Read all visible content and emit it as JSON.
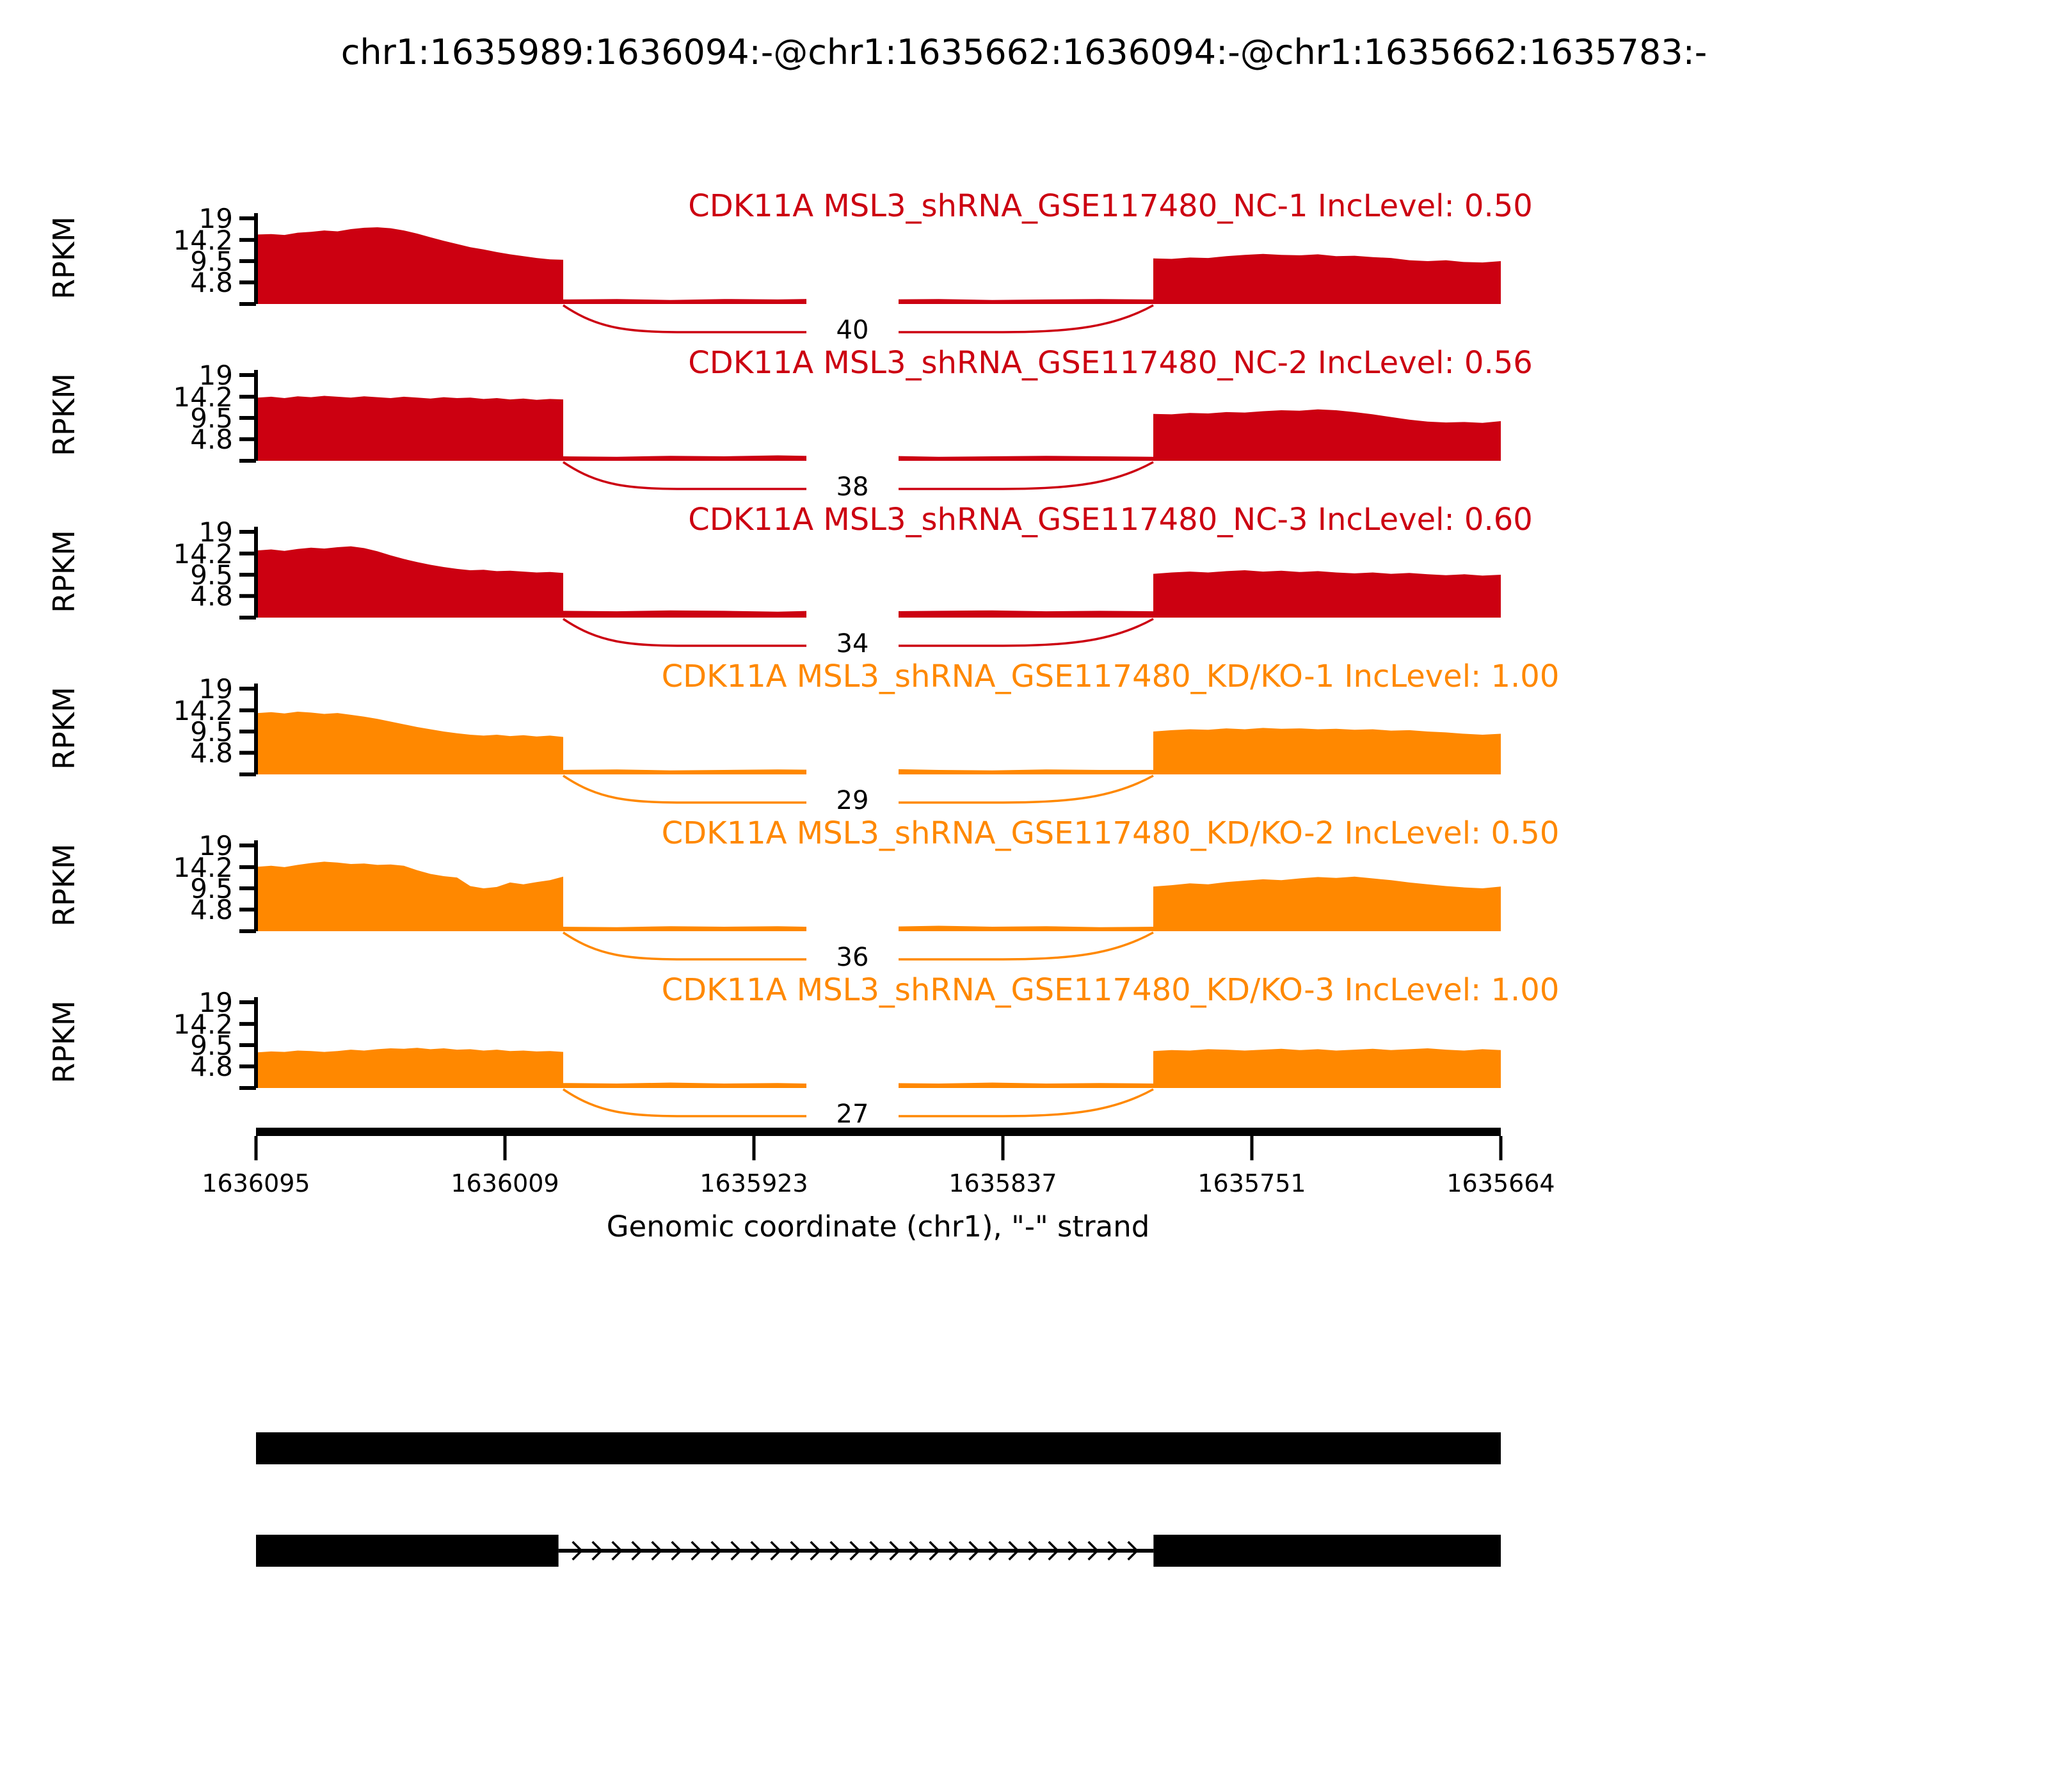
{
  "title": "chr1:1635989:1636094:-@chr1:1635662:1636094:-@chr1:1635662:1635783:-",
  "axes": {
    "ylabel": "RPKM",
    "ytick_labels": [
      "19",
      "14.2",
      "9.5",
      "4.8"
    ],
    "xlabel": "Genomic coordinate (chr1), \"-\" strand",
    "xtick_labels": [
      "1636095",
      "1636009",
      "1635923",
      "1635837",
      "1635751",
      "1635664"
    ]
  },
  "colors": {
    "group1": "#CC0011",
    "group2": "#FF8800",
    "text": "#000000",
    "gene_model": "#000000",
    "background": "#FFFFFF"
  },
  "chart_data": {
    "type": "area",
    "title": "chr1:1635989:1636094:-@chr1:1635662:1636094:-@chr1:1635662:1635783:-",
    "xlabel": "Genomic coordinate (chr1), \"-\" strand",
    "ylabel": "RPKM",
    "ylim": [
      0,
      19.8
    ],
    "y_ticks": [
      19,
      14.2,
      9.5,
      4.8
    ],
    "x_ticks": [
      "1636095",
      "1636009",
      "1635923",
      "1635837",
      "1635751",
      "1635664"
    ],
    "grid": false,
    "legend": false,
    "tracks": [
      {
        "sample": "CDK11A MSL3_shRNA_GSE117480_NC-1",
        "inc_level": "0.50",
        "label": "CDK11A MSL3_shRNA_GSE117480_NC-1 IncLevel: 0.50",
        "junction_reads": 40,
        "group": 1,
        "color": "#CC0011",
        "rpkm": {
          "exon1": [
            15.4,
            15.5,
            15.3,
            15.8,
            16.0,
            16.3,
            16.1,
            16.6,
            16.9,
            17.0,
            16.8,
            16.3,
            15.6,
            14.8,
            14.0,
            13.3,
            12.6,
            12.1,
            11.5,
            11.0,
            10.6,
            10.2,
            9.9,
            9.8
          ],
          "intron": [
            1.0,
            1.1,
            0.9,
            1.1,
            1.0,
            1.2,
            1.0,
            1.1,
            0.9,
            1.0,
            1.1,
            1.0
          ],
          "exon2": [
            10.1,
            10.0,
            10.3,
            10.2,
            10.6,
            10.9,
            11.1,
            10.9,
            10.8,
            11.0,
            10.6,
            10.7,
            10.4,
            10.2,
            9.7,
            9.5,
            9.7,
            9.3,
            9.2,
            9.5
          ]
        }
      },
      {
        "sample": "CDK11A MSL3_shRNA_GSE117480_NC-2",
        "inc_level": "0.56",
        "label": "CDK11A MSL3_shRNA_GSE117480_NC-2 IncLevel: 0.56",
        "junction_reads": 38,
        "group": 1,
        "color": "#CC0011",
        "rpkm": {
          "exon1": [
            14.0,
            14.2,
            13.9,
            14.3,
            14.1,
            14.4,
            14.2,
            14.0,
            14.3,
            14.1,
            13.9,
            14.2,
            14.0,
            13.8,
            14.1,
            13.9,
            14.0,
            13.7,
            13.9,
            13.6,
            13.8,
            13.5,
            13.7,
            13.6
          ],
          "intron": [
            1.0,
            0.9,
            1.1,
            1.0,
            1.2,
            1.0,
            1.1,
            0.9,
            1.0,
            1.1,
            1.0,
            0.9
          ],
          "exon2": [
            10.4,
            10.3,
            10.6,
            10.5,
            10.8,
            10.7,
            11.0,
            11.2,
            11.1,
            11.4,
            11.2,
            10.8,
            10.3,
            9.7,
            9.1,
            8.7,
            8.5,
            8.6,
            8.4,
            8.8
          ]
        }
      },
      {
        "sample": "CDK11A MSL3_shRNA_GSE117480_NC-3",
        "inc_level": "0.60",
        "label": "CDK11A MSL3_shRNA_GSE117480_NC-3 IncLevel: 0.60",
        "junction_reads": 34,
        "group": 1,
        "color": "#CC0011",
        "rpkm": {
          "exon1": [
            14.9,
            15.1,
            14.8,
            15.2,
            15.5,
            15.3,
            15.6,
            15.8,
            15.4,
            14.7,
            13.8,
            13.0,
            12.3,
            11.7,
            11.2,
            10.8,
            10.5,
            10.6,
            10.3,
            10.4,
            10.2,
            10.0,
            10.1,
            9.9
          ],
          "intron": [
            1.5,
            1.4,
            1.6,
            1.5,
            1.3,
            1.6,
            1.4,
            1.5,
            1.6,
            1.4,
            1.5,
            1.4
          ],
          "exon2": [
            9.7,
            10.0,
            10.2,
            10.0,
            10.3,
            10.5,
            10.2,
            10.4,
            10.1,
            10.3,
            10.0,
            9.8,
            10.0,
            9.7,
            9.9,
            9.6,
            9.4,
            9.6,
            9.3,
            9.5
          ]
        }
      },
      {
        "sample": "CDK11A MSL3_shRNA_GSE117480_KD/KO-1",
        "inc_level": "1.00",
        "label": "CDK11A MSL3_shRNA_GSE117480_KD/KO-1 IncLevel: 1.00",
        "junction_reads": 29,
        "group": 2,
        "color": "#FF8800",
        "rpkm": {
          "exon1": [
            13.6,
            13.8,
            13.5,
            13.9,
            13.7,
            13.4,
            13.6,
            13.2,
            12.8,
            12.3,
            11.7,
            11.1,
            10.5,
            10.0,
            9.5,
            9.1,
            8.8,
            8.6,
            8.8,
            8.5,
            8.7,
            8.4,
            8.6,
            8.3
          ],
          "intron": [
            1.0,
            1.1,
            0.9,
            1.0,
            1.1,
            1.0,
            1.2,
            1.0,
            0.9,
            1.1,
            1.0,
            1.0
          ],
          "exon2": [
            9.5,
            9.8,
            10.0,
            9.9,
            10.2,
            10.0,
            10.3,
            10.1,
            10.2,
            10.0,
            10.1,
            9.9,
            10.0,
            9.7,
            9.8,
            9.5,
            9.3,
            9.0,
            8.8,
            9.0
          ]
        }
      },
      {
        "sample": "CDK11A MSL3_shRNA_GSE117480_KD/KO-2",
        "inc_level": "0.50",
        "label": "CDK11A MSL3_shRNA_GSE117480_KD/KO-2 IncLevel: 0.50",
        "junction_reads": 36,
        "group": 2,
        "color": "#FF8800",
        "rpkm": {
          "exon1": [
            14.3,
            14.5,
            14.2,
            14.7,
            15.1,
            15.4,
            15.2,
            14.9,
            15.0,
            14.7,
            14.8,
            14.5,
            13.5,
            12.7,
            12.2,
            11.9,
            10.0,
            9.5,
            9.8,
            10.8,
            10.4,
            10.9,
            11.3,
            12.1
          ],
          "intron": [
            1.0,
            0.9,
            1.1,
            1.0,
            1.1,
            0.9,
            1.0,
            1.2,
            1.0,
            1.1,
            0.9,
            1.0
          ],
          "exon2": [
            9.9,
            10.2,
            10.6,
            10.4,
            10.9,
            11.2,
            11.5,
            11.3,
            11.7,
            12.0,
            11.8,
            12.1,
            11.7,
            11.3,
            10.8,
            10.4,
            10.0,
            9.7,
            9.5,
            9.9
          ]
        }
      },
      {
        "sample": "CDK11A MSL3_shRNA_GSE117480_KD/KO-3",
        "inc_level": "1.00",
        "label": "CDK11A MSL3_shRNA_GSE117480_KD/KO-3 IncLevel: 1.00",
        "junction_reads": 27,
        "group": 2,
        "color": "#FF8800",
        "rpkm": {
          "exon1": [
            7.9,
            8.1,
            8.0,
            8.3,
            8.2,
            8.0,
            8.2,
            8.5,
            8.3,
            8.6,
            8.8,
            8.7,
            8.9,
            8.6,
            8.8,
            8.5,
            8.6,
            8.3,
            8.5,
            8.2,
            8.3,
            8.1,
            8.2,
            8.0
          ],
          "intron": [
            1.1,
            1.0,
            1.2,
            1.0,
            1.1,
            0.9,
            1.1,
            1.0,
            1.2,
            1.0,
            1.1,
            1.0
          ],
          "exon2": [
            8.2,
            8.4,
            8.3,
            8.6,
            8.5,
            8.3,
            8.5,
            8.7,
            8.4,
            8.6,
            8.3,
            8.5,
            8.7,
            8.4,
            8.6,
            8.8,
            8.5,
            8.3,
            8.6,
            8.4
          ]
        }
      }
    ],
    "gene_model": {
      "isoforms": [
        {
          "exons_frac": [
            [
              0.0,
              1.0
            ]
          ]
        },
        {
          "exons_frac": [
            [
              0.0,
              0.243
            ],
            [
              0.721,
              1.0
            ]
          ],
          "intron_arrows": "right"
        }
      ]
    }
  }
}
